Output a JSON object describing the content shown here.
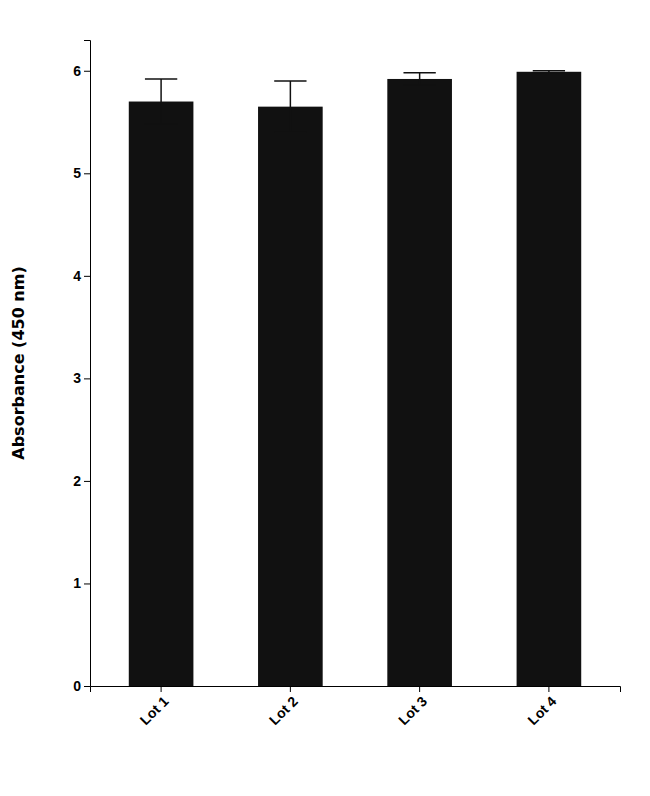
{
  "chart_data": {
    "type": "bar",
    "categories": [
      "Lot 1",
      "Lot 2",
      "Lot 3",
      "Lot 4"
    ],
    "values": [
      5.7,
      5.65,
      5.92,
      5.99
    ],
    "errors": [
      0.22,
      0.25,
      0.06,
      0.01
    ],
    "color": "#111111",
    "ylabel": "Absorbance (450 nm)",
    "ylim": [
      0,
      6.3
    ],
    "yticks": [
      0,
      1,
      2,
      3,
      4,
      5,
      6
    ],
    "grid": false
  }
}
